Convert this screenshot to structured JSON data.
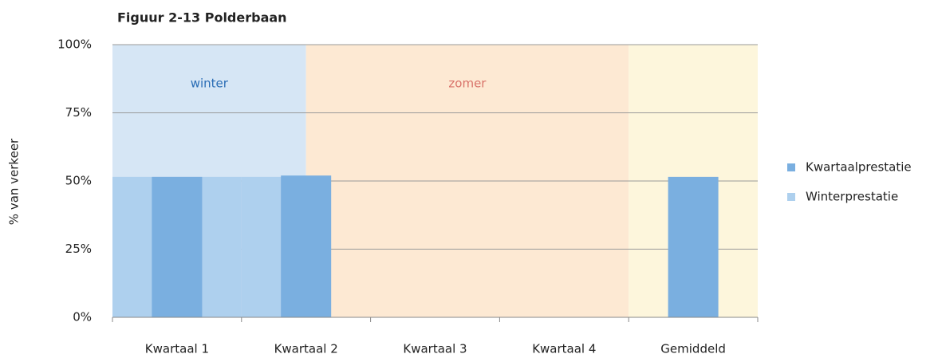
{
  "chart_data": {
    "type": "bar",
    "title": "Figuur 2-13 Polderbaan",
    "y_label": "% van verkeer",
    "categories": [
      "Kwartaal 1",
      "Kwartaal 2",
      "Kwartaal 3",
      "Kwartaal 4",
      "Gemiddeld"
    ],
    "series": [
      {
        "name": "Kwartaalprestatie",
        "color": "#7aafe0",
        "values": [
          51.5,
          52,
          null,
          null,
          51.5
        ]
      },
      {
        "name": "Winterprestatie",
        "color": "#aed0ee",
        "values": [
          51.5,
          51.5,
          null,
          null,
          null
        ]
      }
    ],
    "regions": [
      {
        "label": "winter",
        "color": "#d6e6f5",
        "label_color": "#2a6db5"
      },
      {
        "label": "zomer",
        "color": "#fde9d3",
        "label_color": "#d9736a"
      },
      {
        "color": "#fdf6dc"
      }
    ],
    "ylim": [
      0,
      100
    ],
    "yticks": [
      {
        "value": 0,
        "label": "0%"
      },
      {
        "value": 25,
        "label": "25%"
      },
      {
        "value": 50,
        "label": "50%"
      },
      {
        "value": 75,
        "label": "75%"
      },
      {
        "value": 100,
        "label": "100%"
      }
    ],
    "grid": true,
    "legend": "right"
  }
}
